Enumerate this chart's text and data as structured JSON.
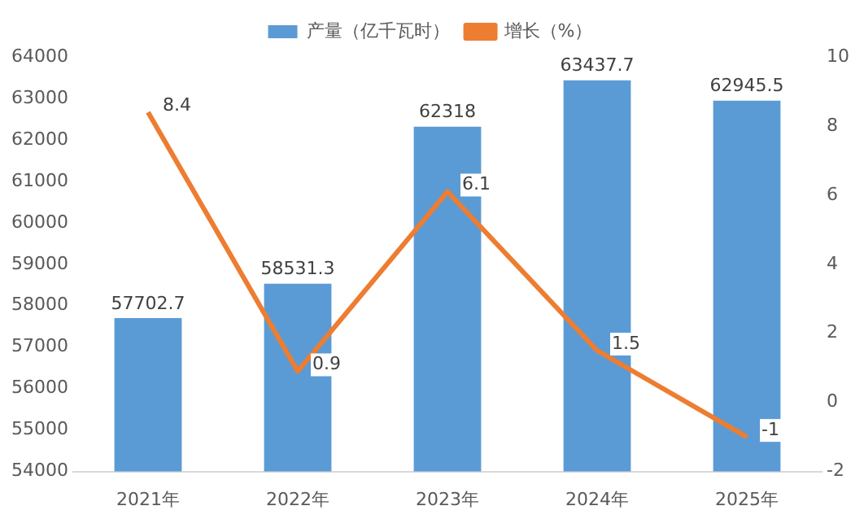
{
  "chart_data": {
    "type": "bar",
    "categories": [
      "2021年",
      "2022年",
      "2023年",
      "2024年",
      "2025年"
    ],
    "series": [
      {
        "name": "产量（亿千瓦时）",
        "color": "#5b9bd5",
        "values": [
          57702.7,
          58531.3,
          62318,
          63437.7,
          62945.5
        ]
      },
      {
        "name": "增长（%）",
        "type": "line",
        "axis": "y2",
        "color": "#ed7d31",
        "values": [
          8.4,
          0.9,
          6.1,
          1.5,
          -1
        ]
      }
    ],
    "ylim": [
      54000,
      64000
    ],
    "yticks": [
      54000,
      55000,
      56000,
      57000,
      58000,
      59000,
      60000,
      61000,
      62000,
      63000,
      64000
    ],
    "y2lim": [
      -2,
      10
    ],
    "y2ticks": [
      -2,
      0,
      2,
      4,
      6,
      8,
      10
    ],
    "legend": "top",
    "grid": false,
    "marker": "none",
    "line_style": "solid",
    "data_labels": true
  }
}
